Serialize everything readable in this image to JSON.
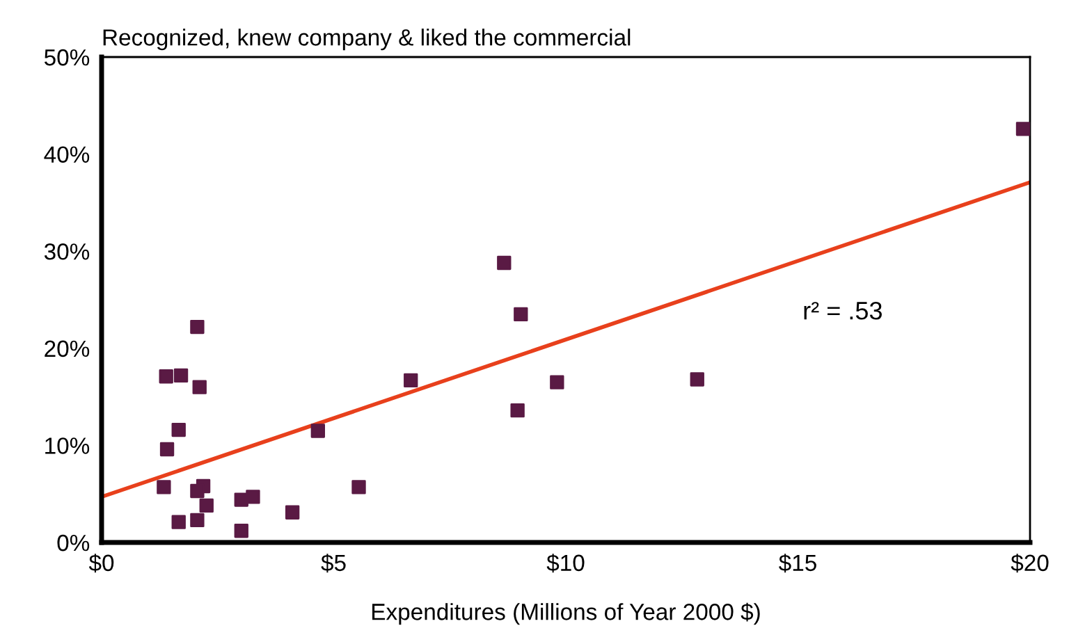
{
  "chart_data": {
    "type": "scatter",
    "title": "Recognized, knew company & liked the commercial",
    "xlabel": "Expenditures (Millions of Year 2000 $)",
    "xlim": [
      0,
      20
    ],
    "ylim": [
      0,
      50
    ],
    "xticks": [
      {
        "value": 0,
        "label": "$0"
      },
      {
        "value": 5,
        "label": "$5"
      },
      {
        "value": 10,
        "label": "$10"
      },
      {
        "value": 15,
        "label": "$15"
      },
      {
        "value": 20,
        "label": "$20"
      }
    ],
    "yticks": [
      {
        "value": 0,
        "label": "0%"
      },
      {
        "value": 10,
        "label": "10%"
      },
      {
        "value": 20,
        "label": "20%"
      },
      {
        "value": 30,
        "label": "30%"
      },
      {
        "value": 40,
        "label": "40%"
      },
      {
        "value": 50,
        "label": "50%"
      }
    ],
    "grid": false,
    "legend": false,
    "series": [
      {
        "marker": "square",
        "color": "#5a1a44",
        "x": [
          2.06,
          1.39,
          1.71,
          2.11,
          1.66,
          1.41,
          4.66,
          1.34,
          2.19,
          2.06,
          2.26,
          3.01,
          3.26,
          4.11,
          1.66,
          2.06,
          3.01,
          5.54,
          8.67,
          9.03,
          6.66,
          9.81,
          8.96,
          12.83,
          19.85
        ],
        "values": [
          22.2,
          17.1,
          17.2,
          16.0,
          11.6,
          9.6,
          11.5,
          5.7,
          5.8,
          5.3,
          3.8,
          4.4,
          4.7,
          3.1,
          2.1,
          2.3,
          1.2,
          5.7,
          28.8,
          23.5,
          16.7,
          16.5,
          13.6,
          16.8,
          42.6
        ]
      },
      {
        "type": "line",
        "color": "#e8401c",
        "x": [
          0,
          20
        ],
        "values": [
          4.7,
          37.1
        ]
      }
    ],
    "annotations": [
      "r² = .53"
    ]
  }
}
